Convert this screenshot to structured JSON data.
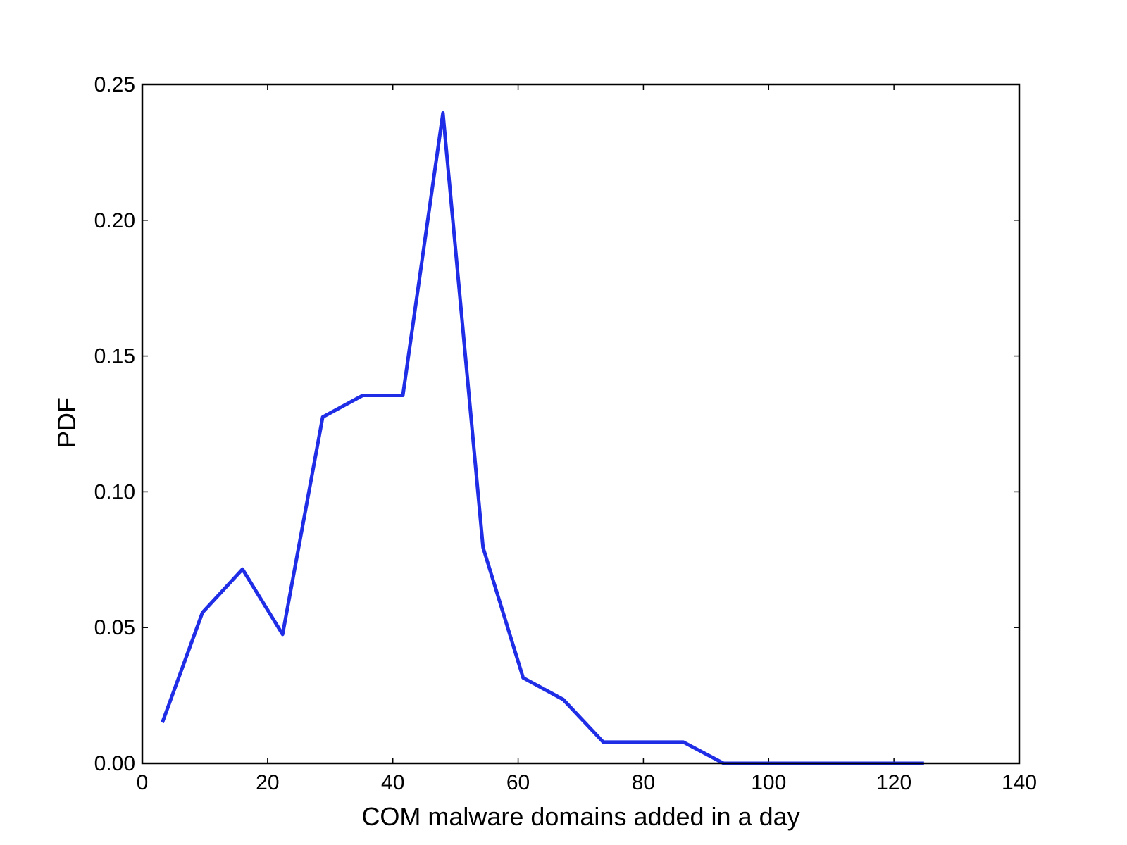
{
  "chart_data": {
    "type": "line",
    "title": "",
    "xlabel": "COM malware domains added in a day",
    "ylabel": "PDF",
    "xlim": [
      0,
      140
    ],
    "ylim": [
      0,
      0.25
    ],
    "xticks": [
      0,
      20,
      40,
      60,
      80,
      100,
      120,
      140
    ],
    "xtick_labels": [
      "0",
      "20",
      "40",
      "60",
      "80",
      "100",
      "120",
      "140"
    ],
    "yticks": [
      0,
      0.05,
      0.1,
      0.15,
      0.2,
      0.25
    ],
    "ytick_labels": [
      "0.00",
      "0.05",
      "0.10",
      "0.15",
      "0.20",
      "0.25"
    ],
    "grid": false,
    "series": [
      {
        "color": "#1f2ee6",
        "x": [
          3.2,
          9.6,
          16.0,
          22.4,
          28.8,
          35.2,
          41.6,
          48.0,
          54.4,
          60.8,
          67.2,
          73.6,
          80.0,
          86.4,
          92.8,
          99.2,
          105.6,
          112.0,
          118.4,
          124.8
        ],
        "y": [
          0.015,
          0.0555,
          0.0715,
          0.0475,
          0.1275,
          0.1355,
          0.1355,
          0.2395,
          0.0795,
          0.0315,
          0.0235,
          0.0078,
          0.0078,
          0.0078,
          0.0,
          0.0,
          0.0,
          0.0,
          0.0,
          0.0
        ]
      }
    ]
  }
}
